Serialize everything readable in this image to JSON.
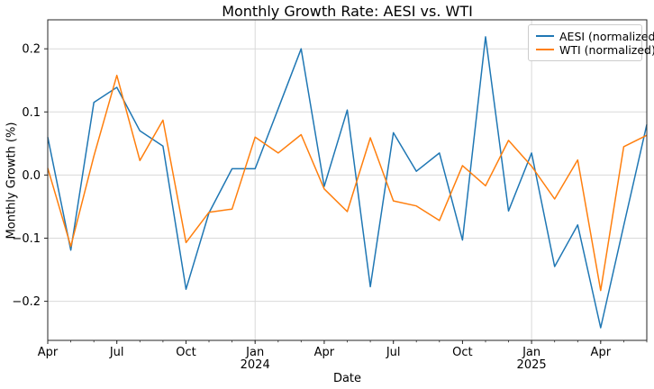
{
  "chart_data": {
    "type": "line",
    "title": "Monthly Growth Rate: AESI vs. WTI",
    "xlabel": "Date",
    "ylabel": "Monthly Growth (%)",
    "x": [
      "2023-04",
      "2023-05",
      "2023-06",
      "2023-07",
      "2023-08",
      "2023-09",
      "2023-10",
      "2023-11",
      "2023-12",
      "2024-01",
      "2024-02",
      "2024-03",
      "2024-04",
      "2024-05",
      "2024-06",
      "2024-07",
      "2024-08",
      "2024-09",
      "2024-10",
      "2024-11",
      "2024-12",
      "2025-01",
      "2025-02",
      "2025-03",
      "2025-04",
      "2025-05",
      "2025-06"
    ],
    "series": [
      {
        "name": "AESI (normalized)",
        "color": "#1f77b4",
        "values": [
          0.06,
          -0.119,
          0.115,
          0.139,
          0.07,
          0.046,
          -0.181,
          -0.06,
          0.01,
          0.01,
          0.105,
          0.2,
          -0.018,
          0.103,
          -0.177,
          0.067,
          0.006,
          0.035,
          -0.103,
          0.219,
          -0.057,
          0.035,
          -0.145,
          -0.079,
          -0.242,
          -0.08,
          0.08
        ]
      },
      {
        "name": "WTI (normalized)",
        "color": "#ff7f0e",
        "values": [
          0.011,
          -0.113,
          0.03,
          0.158,
          0.023,
          0.087,
          -0.107,
          -0.059,
          -0.054,
          0.06,
          0.035,
          0.064,
          -0.022,
          -0.058,
          0.059,
          -0.041,
          -0.049,
          -0.072,
          0.015,
          -0.017,
          0.055,
          0.014,
          -0.038,
          0.024,
          -0.183,
          0.045,
          0.063
        ]
      }
    ],
    "ylim": [
      -0.262,
      0.246
    ],
    "yticks": [
      -0.2,
      -0.1,
      0.0,
      0.1,
      0.2
    ],
    "xticks": [
      {
        "index": 0,
        "label": "Apr"
      },
      {
        "index": 3,
        "label": "Jul"
      },
      {
        "index": 6,
        "label": "Oct"
      },
      {
        "index": 9,
        "label": "Jan",
        "year": "2024"
      },
      {
        "index": 12,
        "label": "Apr"
      },
      {
        "index": 15,
        "label": "Jul"
      },
      {
        "index": 18,
        "label": "Oct"
      },
      {
        "index": 21,
        "label": "Jan",
        "year": "2025"
      },
      {
        "index": 24,
        "label": "Apr"
      }
    ],
    "grid": true,
    "grid_color": "#d9d9d9",
    "spine_color": "#262626",
    "legend_position": "upper right"
  }
}
